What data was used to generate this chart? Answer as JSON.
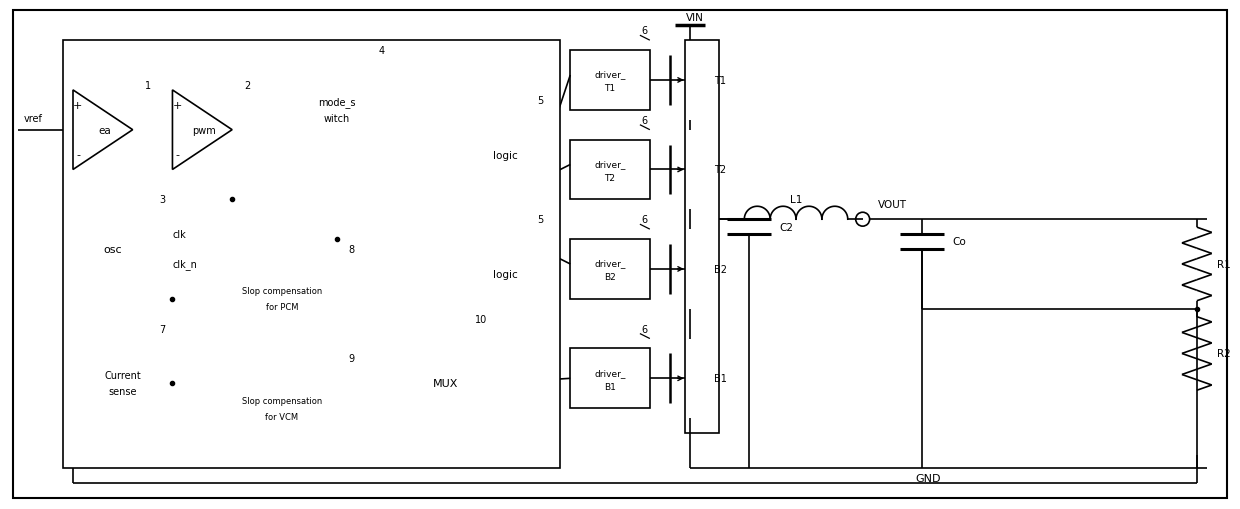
{
  "fig_width": 12.4,
  "fig_height": 5.1,
  "dpi": 100,
  "line_color": "black",
  "line_width": 1.2,
  "bg_color": "white",
  "xlim": [
    0,
    124
  ],
  "ylim": [
    0,
    51
  ]
}
